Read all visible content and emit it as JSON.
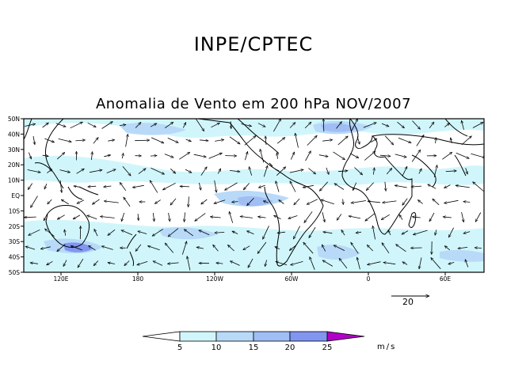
{
  "header": {
    "org": "INPE/CPTEC"
  },
  "map": {
    "title": "Anomalia de Vento em 200 hPa NOV/2007",
    "lat_labels": [
      "50N",
      "40N",
      "30N",
      "20N",
      "10N",
      "EQ",
      "10S",
      "20S",
      "30S",
      "40S",
      "50S"
    ],
    "lon_labels": [
      "120E",
      "180",
      "120W",
      "60W",
      "0",
      "60E"
    ],
    "reference_vector": {
      "label": "20"
    }
  },
  "colorbar": {
    "levels": [
      "5",
      "10",
      "15",
      "20",
      "25"
    ],
    "units": "m/s",
    "colors": [
      "#ffffff",
      "#d0f6fb",
      "#b8daf8",
      "#a0bef4",
      "#8196f0",
      "#5e64e6",
      "#b000c8"
    ]
  }
}
